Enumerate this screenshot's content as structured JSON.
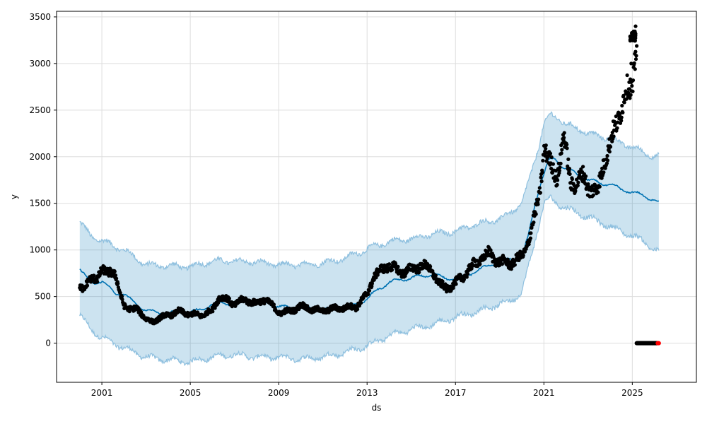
{
  "chart_data": {
    "type": "line",
    "title": "",
    "xlabel": "ds",
    "ylabel": "y",
    "x_ticks": [
      "2001",
      "2005",
      "2009",
      "2013",
      "2017",
      "2021",
      "2025"
    ],
    "y_ticks": [
      "0",
      "500",
      "1000",
      "1500",
      "2000",
      "2500",
      "3000",
      "3500"
    ],
    "xlim": [
      1998.95,
      2027.9
    ],
    "ylim": [
      -420,
      3560
    ],
    "grid": true,
    "colors": {
      "observed": "#000000",
      "forecast_line": "#0072b2",
      "uncertainty_band": "#0072b2",
      "band_edge": "#8fc0df",
      "future_points": "#ff0000"
    },
    "series": [
      {
        "role": "observed",
        "x": [
          2000.0,
          2000.2,
          2000.4,
          2000.6,
          2000.8,
          2001.0,
          2001.2,
          2001.4,
          2001.6,
          2001.8,
          2002.0,
          2002.2,
          2002.4,
          2002.6,
          2002.8,
          2003.0,
          2003.3,
          2003.6,
          2004.0,
          2004.5,
          2005.0,
          2005.5,
          2006.0,
          2006.3,
          2006.6,
          2007.0,
          2007.5,
          2008.0,
          2008.4,
          2008.7,
          2009.0,
          2009.5,
          2010.0,
          2010.5,
          2011.0,
          2011.5,
          2012.0,
          2012.5,
          2013.0,
          2013.3,
          2013.7,
          2014.0,
          2014.5,
          2015.0,
          2015.5,
          2016.0,
          2016.3,
          2016.6,
          2017.0,
          2017.5,
          2018.0,
          2018.5,
          2019.0,
          2019.5,
          2020.0,
          2020.3,
          2020.6,
          2020.8,
          2021.0,
          2021.3,
          2021.6,
          2021.9,
          2022.2,
          2022.5,
          2022.8,
          2023.1,
          2023.4,
          2023.7,
          2024.0,
          2024.3,
          2024.6,
          2024.8,
          2025.0,
          2025.2
        ],
        "y": [
          640,
          560,
          660,
          720,
          700,
          760,
          770,
          790,
          720,
          540,
          420,
          370,
          350,
          380,
          320,
          250,
          230,
          270,
          300,
          340,
          310,
          300,
          350,
          500,
          470,
          420,
          470,
          420,
          480,
          400,
          330,
          340,
          400,
          360,
          350,
          370,
          380,
          390,
          520,
          720,
          790,
          840,
          760,
          790,
          840,
          760,
          620,
          590,
          640,
          760,
          880,
          960,
          870,
          860,
          920,
          1100,
          1360,
          1600,
          2100,
          1900,
          1800,
          2200,
          1750,
          1700,
          1800,
          1650,
          1600,
          1950,
          2100,
          2400,
          2600,
          2700,
          2750,
          3300
        ]
      },
      {
        "role": "forecast",
        "x": [
          2000.0,
          2000.3,
          2000.6,
          2001.0,
          2001.3,
          2001.6,
          2002.0,
          2002.5,
          2003.0,
          2003.5,
          2004.0,
          2004.5,
          2005.0,
          2005.5,
          2006.0,
          2006.5,
          2007.0,
          2007.5,
          2008.0,
          2008.5,
          2009.0,
          2009.5,
          2010.0,
          2010.5,
          2011.0,
          2011.5,
          2012.0,
          2012.5,
          2013.0,
          2013.5,
          2014.0,
          2014.5,
          2015.0,
          2015.5,
          2016.0,
          2016.5,
          2017.0,
          2017.5,
          2018.0,
          2018.5,
          2019.0,
          2019.5,
          2020.0,
          2020.3,
          2020.6,
          2020.9,
          2021.2,
          2021.5,
          2021.8,
          2022.2,
          2022.6,
          2023.0,
          2023.5,
          2024.0,
          2024.5,
          2025.0,
          2025.5,
          2026.0,
          2026.2
        ],
        "y": [
          790,
          700,
          650,
          660,
          600,
          540,
          520,
          430,
          350,
          330,
          320,
          330,
          330,
          360,
          420,
          430,
          420,
          440,
          440,
          430,
          390,
          380,
          380,
          370,
          360,
          370,
          390,
          420,
          470,
          580,
          650,
          680,
          700,
          720,
          740,
          700,
          690,
          730,
          780,
          830,
          880,
          900,
          920,
          1150,
          1500,
          1750,
          1950,
          1980,
          1900,
          1850,
          1800,
          1750,
          1720,
          1700,
          1650,
          1620,
          1580,
          1540,
          1500
        ]
      },
      {
        "role": "uncertainty_upper",
        "x": [
          2000.0,
          2000.5,
          2001.0,
          2001.5,
          2002.0,
          2002.5,
          2003.0,
          2004.0,
          2005.0,
          2006.0,
          2007.0,
          2008.0,
          2009.0,
          2010.0,
          2011.0,
          2012.0,
          2013.0,
          2014.0,
          2015.0,
          2016.0,
          2017.0,
          2018.0,
          2019.0,
          2019.5,
          2020.0,
          2020.4,
          2020.8,
          2021.0,
          2021.3,
          2021.6,
          2022.0,
          2022.5,
          2023.0,
          2023.5,
          2024.0,
          2024.5,
          2025.0,
          2025.5,
          2026.0,
          2026.2
        ],
        "y": [
          1300,
          1150,
          1100,
          1050,
          1000,
          920,
          840,
          830,
          820,
          880,
          880,
          870,
          840,
          840,
          860,
          910,
          1010,
          1090,
          1120,
          1170,
          1200,
          1280,
          1330,
          1400,
          1500,
          1800,
          2150,
          2350,
          2450,
          2420,
          2350,
          2300,
          2250,
          2220,
          2200,
          2150,
          2100,
          2050,
          2000,
          2000
        ]
      },
      {
        "role": "uncertainty_lower",
        "x": [
          2000.0,
          2000.5,
          2001.0,
          2001.5,
          2002.0,
          2002.5,
          2003.0,
          2004.0,
          2005.0,
          2006.0,
          2007.0,
          2008.0,
          2009.0,
          2010.0,
          2011.0,
          2012.0,
          2013.0,
          2014.0,
          2015.0,
          2016.0,
          2017.0,
          2018.0,
          2019.0,
          2019.5,
          2020.0,
          2020.4,
          2020.8,
          2021.0,
          2021.3,
          2021.6,
          2022.0,
          2022.5,
          2023.0,
          2023.5,
          2024.0,
          2024.5,
          2025.0,
          2025.5,
          2026.0,
          2026.2
        ],
        "y": [
          300,
          150,
          60,
          0,
          -50,
          -100,
          -150,
          -180,
          -200,
          -150,
          -120,
          -150,
          -150,
          -170,
          -150,
          -100,
          -30,
          80,
          150,
          200,
          280,
          340,
          420,
          450,
          550,
          900,
          1300,
          1500,
          1550,
          1500,
          1450,
          1400,
          1350,
          1300,
          1250,
          1200,
          1150,
          1100,
          1000,
          980
        ]
      },
      {
        "role": "future_points",
        "x": [
          2025.2,
          2025.4,
          2025.6,
          2025.8,
          2026.0,
          2026.2
        ],
        "y": [
          0,
          0,
          0,
          0,
          0,
          0
        ]
      }
    ]
  }
}
